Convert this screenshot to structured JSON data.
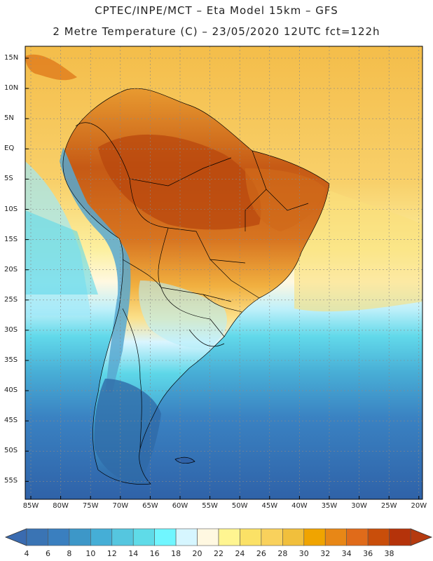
{
  "header": {
    "title_line1": "CPTEC/INPE/MCT –  Eta Model 15km – GFS",
    "title_line2": "2 Metre Temperature (C) – 23/05/2020 12UTC fct=122h"
  },
  "axes": {
    "lat_labels": [
      "15N",
      "10N",
      "5N",
      "EQ",
      "5S",
      "10S",
      "15S",
      "20S",
      "25S",
      "30S",
      "35S",
      "40S",
      "45S",
      "50S",
      "55S"
    ],
    "lon_labels": [
      "85W",
      "80W",
      "75W",
      "70W",
      "65W",
      "60W",
      "55W",
      "50W",
      "45W",
      "40W",
      "35W",
      "30W",
      "25W",
      "20W"
    ]
  },
  "colorbar": {
    "labels": [
      "4",
      "6",
      "8",
      "10",
      "12",
      "14",
      "16",
      "18",
      "20",
      "22",
      "24",
      "26",
      "28",
      "30",
      "32",
      "34",
      "36",
      "38"
    ],
    "colors": [
      "#3a74b4",
      "#3a7fbf",
      "#3d97c8",
      "#45aed6",
      "#55c6df",
      "#5fdbe8",
      "#70f6ff",
      "#d6f6ff",
      "#fff8e1",
      "#fff591",
      "#fbe166",
      "#f9d15c",
      "#f1bf3c",
      "#f0a400",
      "#e88716",
      "#e06b1a",
      "#c94e0a",
      "#b5330a"
    ],
    "low_color": "#3a6bb0",
    "high_color": "#b53a0f"
  },
  "map": {
    "ocean_north": "#f6c25a",
    "ocean_south": "#2e63a6",
    "land_hot": "#c85a14",
    "land_warm": "#e89230",
    "andes_cold": "#5aa0cc",
    "patagonia": "#2f6aa8"
  }
}
